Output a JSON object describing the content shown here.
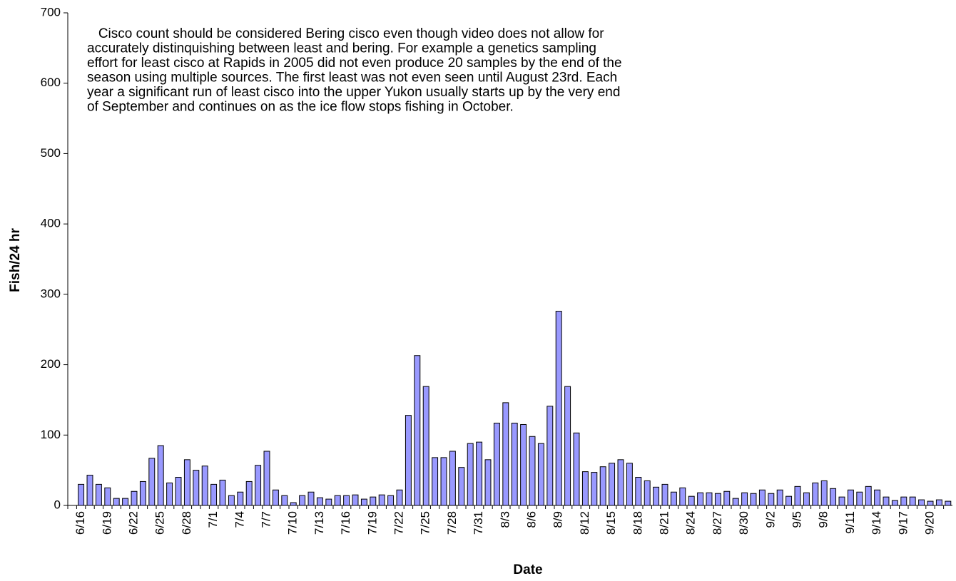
{
  "chart_data": {
    "type": "bar",
    "annotation": [
      "   Cisco count should be considered Bering cisco even though video does not allow for",
      "accurately distinquishing between least and bering. For example a genetics sampling",
      "effort for least cisco at Rapids in 2005 did not even produce 20 samples by the end of the",
      "season using multiple sources. The first least was not even seen until August 23rd. Each",
      "year a significant run of least cisco into the upper Yukon usually starts up by the very end",
      "of September and continues on as the ice flow stops fishing in October."
    ],
    "x_label": "Date",
    "y_label": "Fish/24 hr",
    "categories": [
      null,
      "6/16",
      null,
      null,
      "6/19",
      null,
      null,
      "6/22",
      null,
      null,
      "6/25",
      null,
      null,
      "6/28",
      null,
      null,
      "7/1",
      null,
      null,
      "7/4",
      null,
      null,
      "7/7",
      null,
      null,
      "7/10",
      null,
      null,
      "7/13",
      null,
      null,
      "7/16",
      null,
      null,
      "7/19",
      null,
      null,
      "7/22",
      null,
      null,
      "7/25",
      null,
      null,
      "7/28",
      null,
      null,
      "7/31",
      null,
      null,
      "8/3",
      null,
      null,
      "8/6",
      null,
      null,
      "8/9",
      null,
      null,
      "8/12",
      null,
      null,
      "8/15",
      null,
      null,
      "8/18",
      null,
      null,
      "8/21",
      null,
      null,
      "8/24",
      null,
      null,
      "8/27",
      null,
      null,
      "8/30",
      null,
      null,
      "9/2",
      null,
      null,
      "9/5",
      null,
      null,
      "9/8",
      null,
      null,
      "9/11",
      null,
      null,
      "9/14",
      null,
      null,
      "9/17",
      null,
      null,
      "9/20",
      null,
      null
    ],
    "values": [
      null,
      30,
      43,
      30,
      25,
      10,
      10,
      20,
      34,
      67,
      85,
      32,
      40,
      65,
      50,
      56,
      30,
      36,
      14,
      19,
      34,
      57,
      77,
      22,
      14,
      4,
      14,
      19,
      11,
      9,
      14,
      14,
      15,
      9,
      12,
      15,
      14,
      22,
      128,
      213,
      169,
      68,
      68,
      77,
      54,
      88,
      90,
      65,
      117,
      146,
      117,
      115,
      98,
      88,
      141,
      276,
      169,
      103,
      48,
      47,
      55,
      60,
      65,
      60,
      40,
      35,
      26,
      30,
      19,
      25,
      13,
      18,
      18,
      17,
      20,
      10,
      18,
      17,
      22,
      17,
      22,
      13,
      27,
      18,
      32,
      35,
      24,
      12,
      22,
      19,
      27,
      22,
      12,
      7,
      12,
      12,
      8,
      6,
      8,
      6
    ],
    "color": "#9999ff",
    "ylim": [
      0,
      700
    ],
    "yticks": [
      0,
      100,
      200,
      300,
      400,
      500,
      600,
      700
    ]
  }
}
